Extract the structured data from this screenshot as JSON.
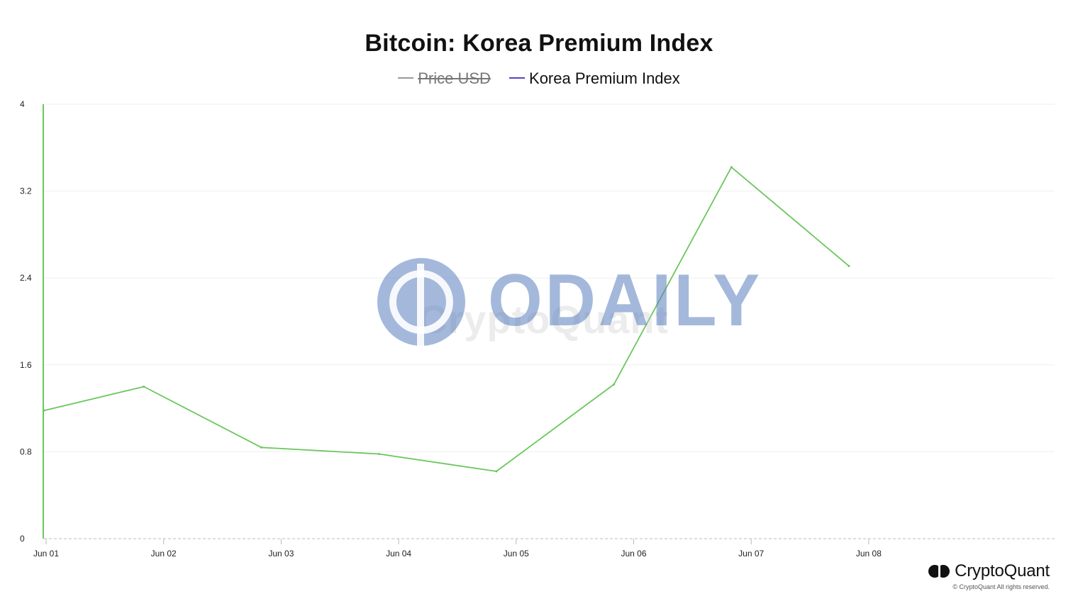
{
  "chart_data": {
    "type": "line",
    "title": "Bitcoin: Korea Premium Index",
    "legend": [
      {
        "name": "Price USD",
        "color": "#999999",
        "hidden": true
      },
      {
        "name": "Korea Premium Index",
        "color": "#5b3fc4",
        "hidden": false
      }
    ],
    "x_ticks": [
      "Jun 01",
      "Jun 02",
      "Jun 03",
      "Jun 04",
      "Jun 05",
      "Jun 06",
      "Jun 07",
      "Jun 08"
    ],
    "x_range_days": [
      0,
      8.6
    ],
    "y_ticks": [
      "0",
      "0.8",
      "1.6",
      "2.4",
      "3.2",
      "4"
    ],
    "ylim": [
      0,
      4
    ],
    "grid": true,
    "series": [
      {
        "name": "Korea Premium Index",
        "color": "#6cc65e",
        "points": [
          {
            "date": "Jun 01",
            "value": 1.18
          },
          {
            "date": "Jun 01 (late)",
            "value": 1.4
          },
          {
            "date": "Jun 02 (late)",
            "value": 0.84
          },
          {
            "date": "Jun 03 (late)",
            "value": 0.78
          },
          {
            "date": "Jun 04 (late)",
            "value": 0.62
          },
          {
            "date": "Jun 05 (late)",
            "value": 1.42
          },
          {
            "date": "Jun 06 (late)",
            "value": 3.42
          },
          {
            "date": "Jun 07 (late)",
            "value": 2.51
          }
        ],
        "x_days": [
          0,
          0.85,
          1.85,
          2.85,
          3.85,
          4.85,
          5.85,
          6.85
        ]
      }
    ]
  },
  "watermark": {
    "text": "ODAILY",
    "secondary": "CryptoQuant"
  },
  "brand": {
    "name": "CryptoQuant",
    "copyright": "© CryptoQuant All rights reserved."
  },
  "colors": {
    "line": "#6cc65e",
    "grid": "#efefef",
    "axis": "#bbbbbb",
    "watermark": "#5a7dbe"
  }
}
